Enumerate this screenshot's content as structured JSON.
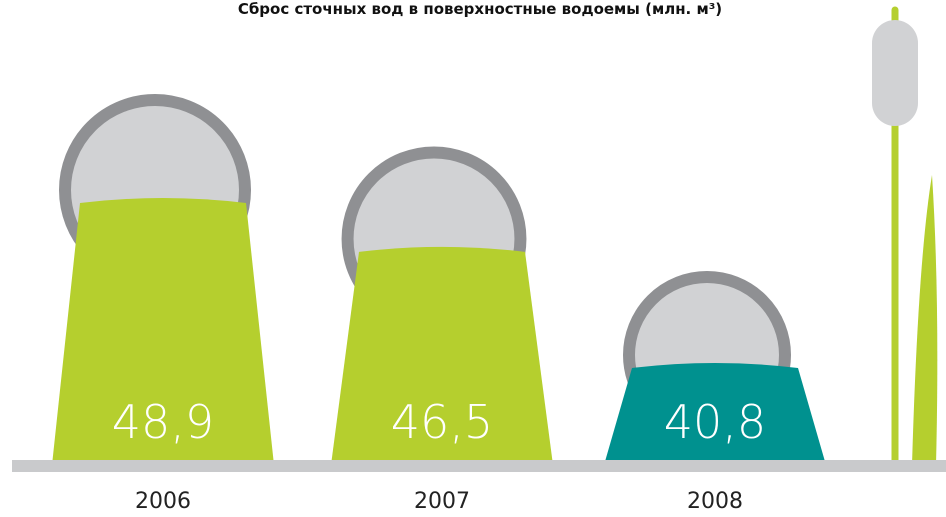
{
  "chart_data": {
    "type": "bar",
    "title": "Сброс сточных вод в поверхностные водоемы (млн. м³)",
    "categories": [
      "2006",
      "2007",
      "2008"
    ],
    "values": [
      48.9,
      46.5,
      40.8
    ],
    "value_labels": [
      "48,9",
      "46,5",
      "40,8"
    ],
    "colors": [
      "#b5cf2e",
      "#b5cf2e",
      "#00918f"
    ]
  }
}
